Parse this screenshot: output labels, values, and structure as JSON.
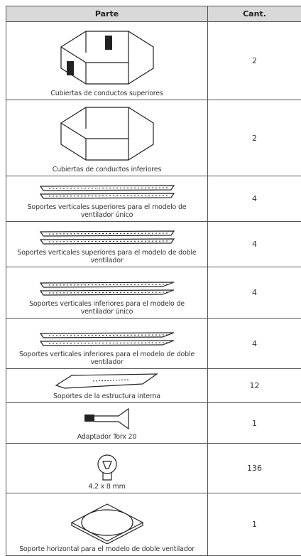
{
  "table": {
    "header": [
      "Parte",
      "Cant."
    ],
    "rows": [
      [
        "Cubiertas de conductos superiores",
        2
      ],
      [
        "Cubiertas de conductos inferiores",
        2
      ],
      [
        "Soportes verticales superiores para el modelo de ventilador único",
        4
      ],
      [
        "Soportes verticales superiores para el modelo de doble ventilador",
        4
      ],
      [
        "Soportes verticales inferiores para el modelo de ventilador único",
        4
      ],
      [
        "Soportes verticales inferiores para el modelo de doble ventilador",
        4
      ],
      [
        "Soportes de la estructura interna",
        12
      ],
      [
        "Adaptador Torx 20",
        1
      ],
      [
        "4.2 x 8 mm",
        136
      ],
      [
        "Soporte horizontal para el modelo de doble ventilador",
        1
      ]
    ]
  }
}
